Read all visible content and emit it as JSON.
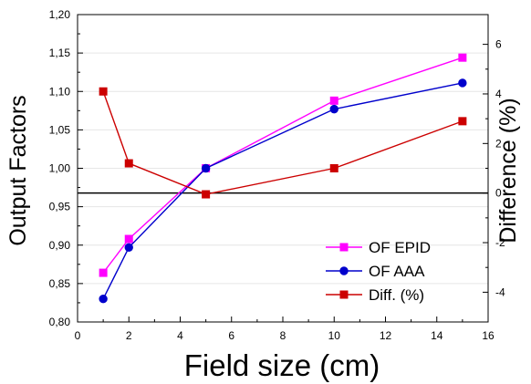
{
  "chart_data": {
    "type": "line",
    "xlabel": "Field size (cm)",
    "ylabel_left": "Output Factors",
    "ylabel_right": "Difference (%)",
    "xlim": [
      0,
      16
    ],
    "ylim_left": [
      0.8,
      1.2
    ],
    "ylim_right": [
      -5.2,
      7.2
    ],
    "x_ticks": [
      "0",
      "2",
      "4",
      "6",
      "8",
      "10",
      "12",
      "14",
      "16"
    ],
    "y_left_ticks": [
      "0,80",
      "0,85",
      "0,90",
      "0,95",
      "1,00",
      "1,05",
      "1,10",
      "1,15",
      "1,20"
    ],
    "y_right_ticks": [
      "-4",
      "-2",
      "0",
      "2",
      "4",
      "6"
    ],
    "grid": true,
    "legend_position": "lower-right",
    "series": [
      {
        "name": "OF EPID",
        "color": "#ff00ff",
        "marker": "square",
        "axis": "left",
        "x": [
          1,
          2,
          5,
          10,
          15
        ],
        "y": [
          0.864,
          0.908,
          1.0,
          1.088,
          1.144
        ]
      },
      {
        "name": "OF AAA",
        "color": "#0000cc",
        "marker": "circle",
        "axis": "left",
        "x": [
          1,
          2,
          5,
          10,
          15
        ],
        "y": [
          0.83,
          0.897,
          1.0,
          1.077,
          1.111
        ]
      },
      {
        "name": "Diff. (%)",
        "color": "#cc0000",
        "marker": "square",
        "axis": "right",
        "x": [
          1,
          2,
          5,
          10,
          15
        ],
        "y": [
          4.1,
          1.2,
          -0.05,
          1.0,
          2.9
        ]
      }
    ],
    "reference_line": {
      "axis": "right",
      "y": 0,
      "color": "#000000"
    }
  }
}
